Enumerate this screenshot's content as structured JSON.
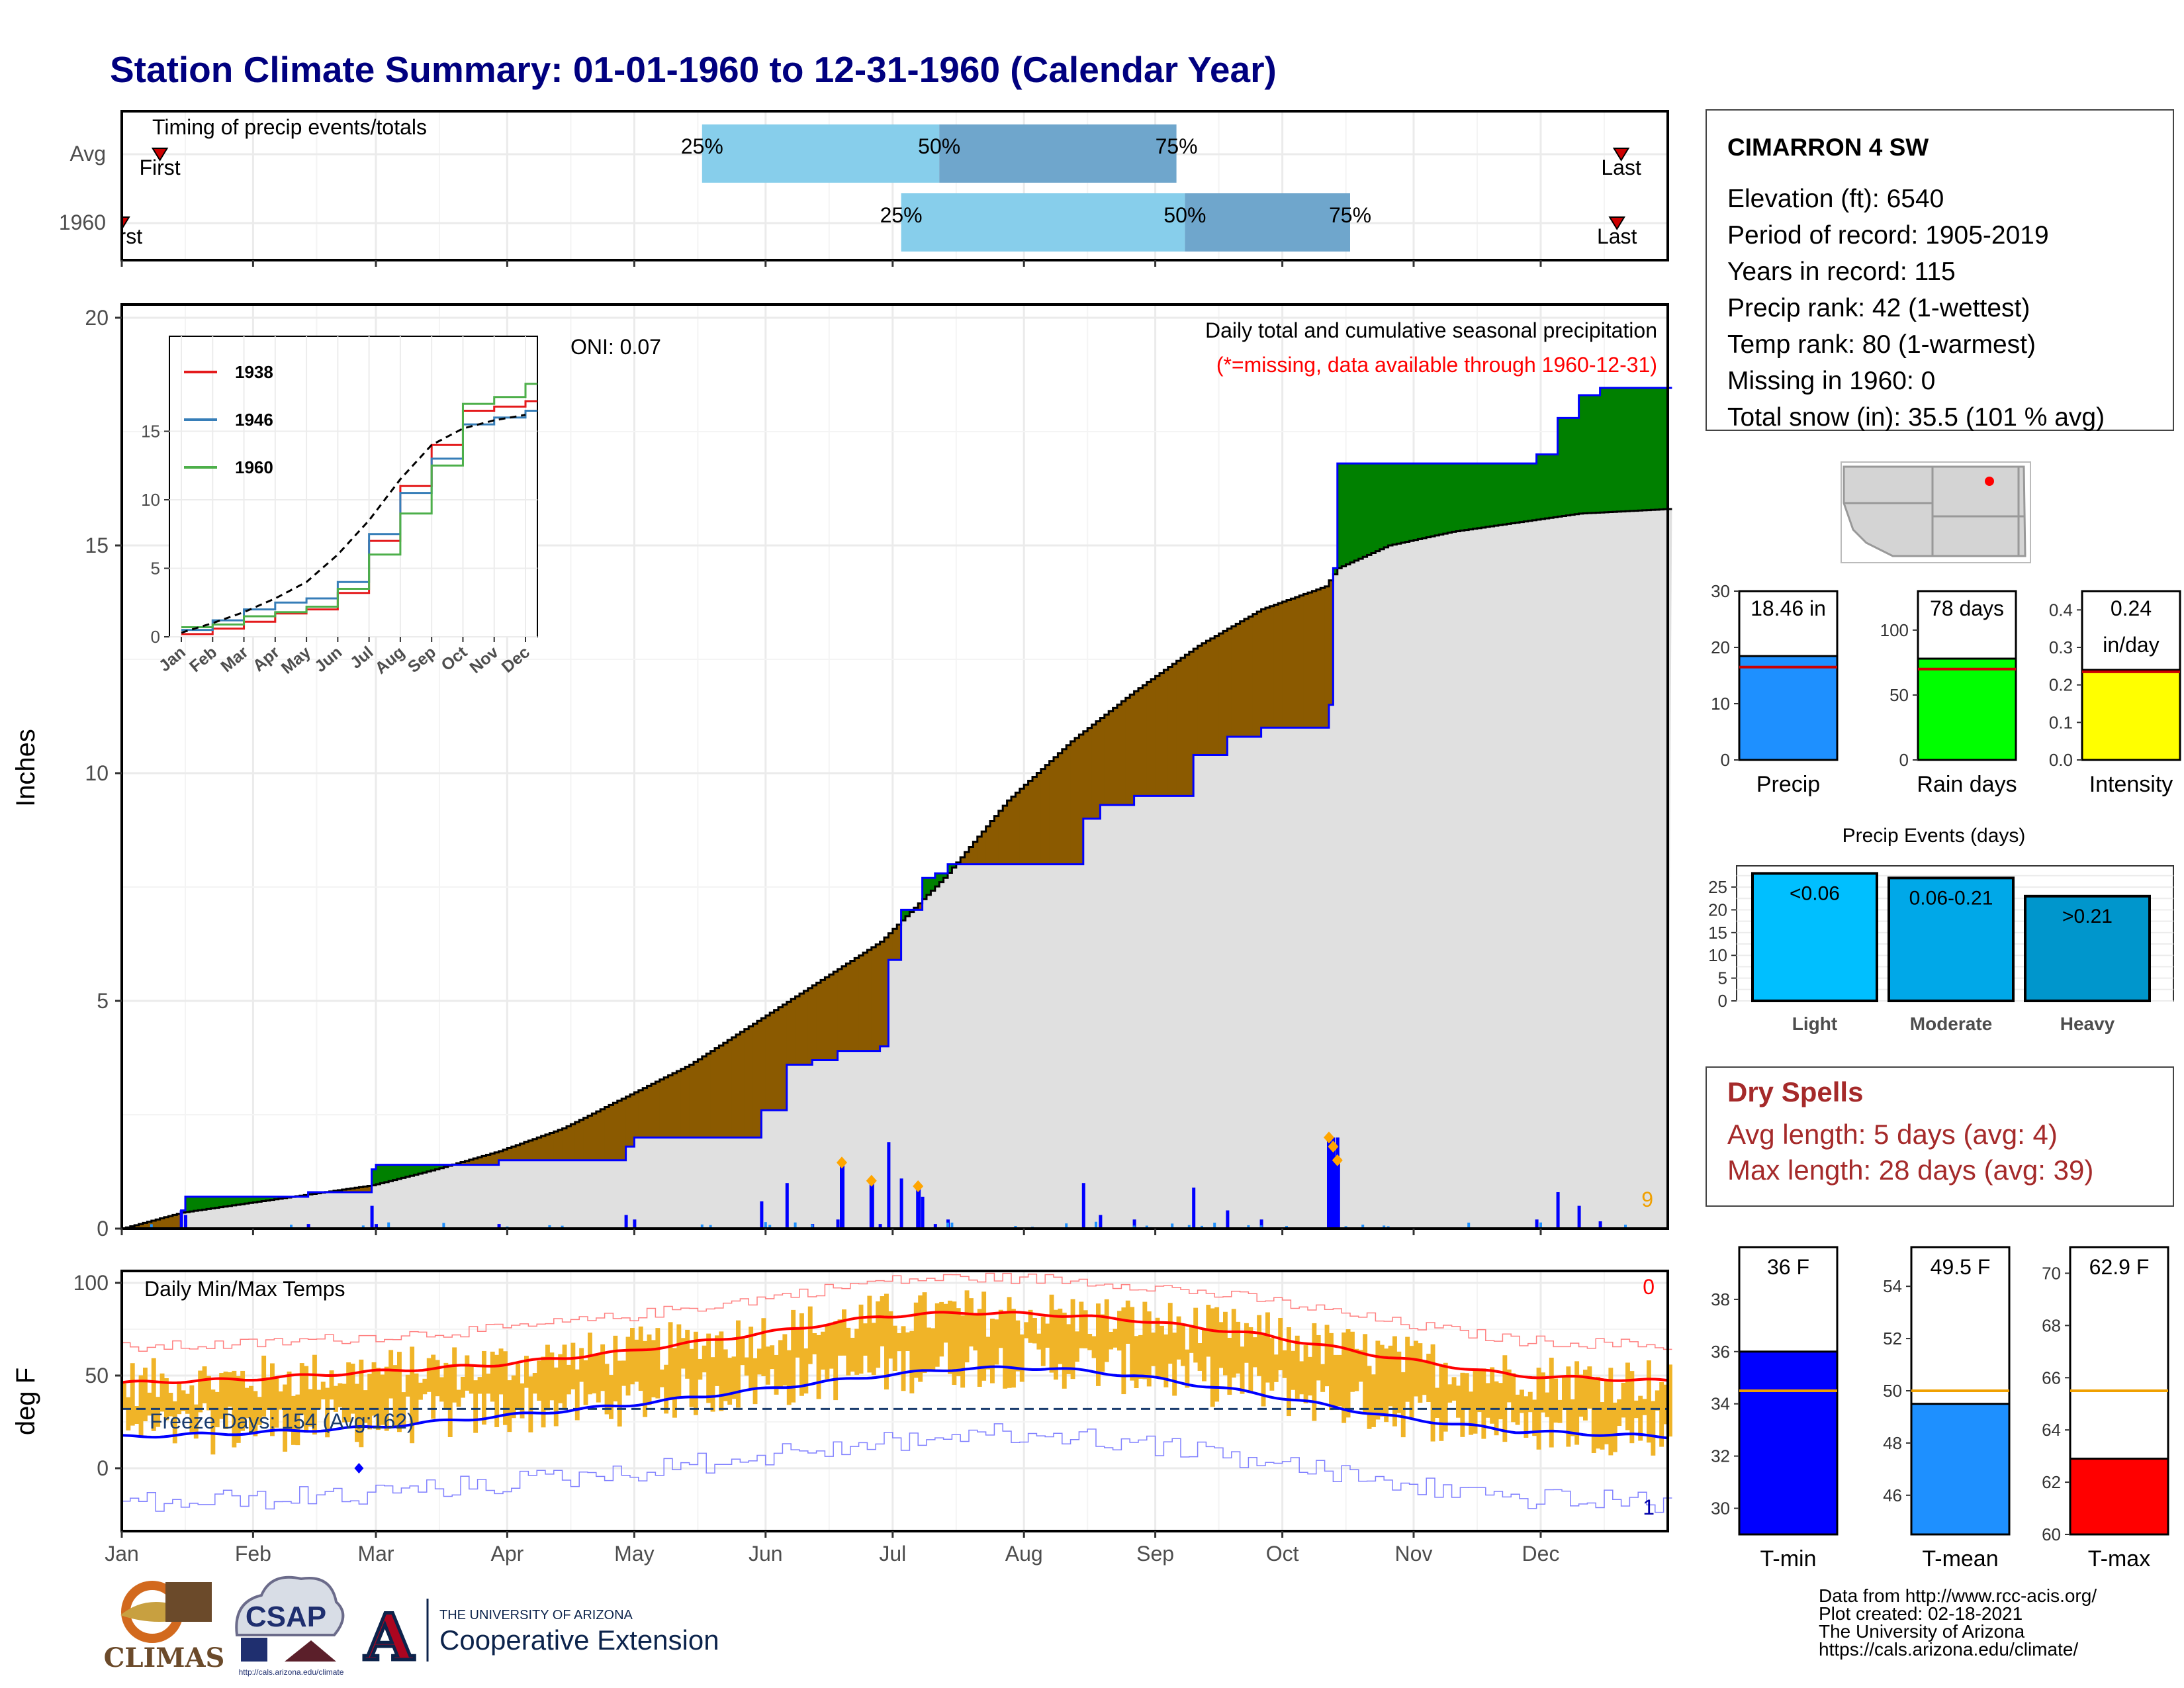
{
  "title": "Station Climate Summary: 01-01-1960 to 12-31-1960 (Calendar Year)",
  "colors": {
    "title": "#00007f",
    "q_light": "#87ceeb",
    "q_dark": "#6fa6cc",
    "cum_avg_fill": "#e0e0e0",
    "above_avg": "#008000",
    "below_avg": "#8b5a00",
    "cum_line": "#0000ff",
    "temp_bar": "#f0b428",
    "tmax": "#ff0000",
    "tmin": "#0000ff",
    "precip_bar": "#1e90ff",
    "rain_bar": "#00ff00",
    "intensity_bar": "#ffff00",
    "light": "#00bfff",
    "moderate": "#00a8e8",
    "heavy": "#0096cc",
    "dry": "#a52a2a"
  },
  "months": [
    "Jan",
    "Feb",
    "Mar",
    "Apr",
    "May",
    "Jun",
    "Jul",
    "Aug",
    "Sep",
    "Oct",
    "Nov",
    "Dec"
  ],
  "timing": {
    "label": "Timing of precip events/totals",
    "rows": [
      {
        "name": "Avg",
        "first_label": "First",
        "last_label": "Last",
        "q25": "25%",
        "q50": "50%",
        "q75": "75%",
        "q25_day": 138,
        "q50_day": 194,
        "q75_day": 250,
        "first_day": 10,
        "last_day": 355
      },
      {
        "name": "1960",
        "first_label": "First",
        "last_label": "Last",
        "q25": "25%",
        "q50": "50%",
        "q75": "75%",
        "q25_day": 185,
        "q50_day": 252,
        "q75_day": 291,
        "first_day": 1,
        "last_day": 354
      }
    ]
  },
  "main_panel": {
    "title": "Daily total and cumulative seasonal precipitation",
    "subtitle": "(*=missing, data available through 1960-12-31)",
    "oni": "ONI: 0.07",
    "ylabel": "Inches",
    "yticks": [
      "0",
      "5",
      "10",
      "15",
      "20"
    ],
    "missing_count": "9"
  },
  "inset": {
    "yticks": [
      "0",
      "5",
      "10",
      "15"
    ],
    "legend": [
      {
        "name": "1938",
        "color": "#e41a1c"
      },
      {
        "name": "1946",
        "color": "#377eb8"
      },
      {
        "name": "1960",
        "color": "#4daf4a"
      }
    ]
  },
  "temp_panel": {
    "label": "Daily Min/Max Temps",
    "ylabel": "deg F",
    "yticks": [
      "0",
      "50",
      "100"
    ],
    "freeze": "Freeze Days: 154 (Avg:162)",
    "max_missing": "0",
    "min_missing": "1"
  },
  "station": {
    "name": "CIMARRON 4 SW",
    "lines": [
      "Elevation (ft): 6540",
      "Period of record: 1905-2019",
      "Years in record: 115",
      "Precip rank: 42 (1-wettest)",
      "Temp rank: 80 (1-warmest)",
      "Missing in 1960: 0",
      "Total snow (in): 35.5 (101 % avg)"
    ]
  },
  "small_bars": [
    {
      "label": "Precip",
      "value_text": "18.46 in",
      "value": 18.46,
      "avg": 16.5,
      "ymax": 30,
      "yticks": [
        "0",
        "10",
        "20",
        "30"
      ],
      "color": "#1e90ff"
    },
    {
      "label": "Rain days",
      "value_text": "78 days",
      "value": 78,
      "avg": 70,
      "ymax": 130,
      "yticks": [
        "0",
        "50",
        "100"
      ],
      "color": "#00ff00"
    },
    {
      "label": "Intensity",
      "value_text": "0.24",
      "value_text2": "in/day",
      "value": 0.24,
      "avg": 0.235,
      "ymax": 0.45,
      "yticks": [
        "0.0",
        "0.1",
        "0.2",
        "0.3",
        "0.4"
      ],
      "color": "#ffff00"
    }
  ],
  "events": {
    "title": "Precip Events (days)",
    "yticks": [
      "0",
      "5",
      "10",
      "15",
      "20",
      "25"
    ],
    "bars": [
      {
        "category": "Light",
        "label": "<0.06",
        "value": 28
      },
      {
        "category": "Moderate",
        "label": "0.06-0.21",
        "value": 27
      },
      {
        "category": "Heavy",
        "label": ">0.21",
        "value": 23
      }
    ]
  },
  "dry": {
    "title": "Dry Spells",
    "avg": "Avg length: 5 days (avg: 4)",
    "max": "Max length: 28 days (avg: 39)"
  },
  "temp_bars": [
    {
      "label": "T-min",
      "value_text": "36 F",
      "value": 36,
      "avg": 34.5,
      "ymin": 29,
      "ymax": 40,
      "yticks": [
        "30",
        "32",
        "34",
        "36",
        "38"
      ],
      "color": "#0000ff"
    },
    {
      "label": "T-mean",
      "value_text": "49.5 F",
      "value": 49.5,
      "avg": 50,
      "ymin": 44.5,
      "ymax": 55.5,
      "yticks": [
        "46",
        "48",
        "50",
        "52",
        "54"
      ],
      "color": "#1e90ff"
    },
    {
      "label": "T-max",
      "value_text": "62.9 F",
      "value": 62.9,
      "avg": 65.5,
      "ymin": 60,
      "ymax": 71,
      "yticks": [
        "60",
        "62",
        "64",
        "66",
        "68",
        "70"
      ],
      "color": "#ff0000"
    }
  ],
  "footer": {
    "lines": [
      "Data from http://www.rcc-acis.org/",
      "Plot created: 02-18-2021",
      "The University of Arizona",
      "https://cals.arizona.edu/climate/"
    ]
  },
  "logos": {
    "climas": "CLIMAS",
    "csap": "CSAP",
    "csap_url": "http://cals.arizona.edu/climate",
    "ua_small": "THE UNIVERSITY OF ARIZONA",
    "ua_big": "Cooperative Extension",
    "ua_letter": "A"
  },
  "chart_data": [
    {
      "type": "area",
      "title": "Daily total and cumulative seasonal precipitation",
      "ylabel": "Inches",
      "ylim": [
        0,
        20
      ],
      "x_units": "day of year 1960",
      "series": [
        {
          "name": "",
          "x": [
            1,
            15,
            30,
            45,
            60,
            75,
            90,
            105,
            120,
            135,
            150,
            165,
            180,
            195,
            210,
            225,
            240,
            255,
            270,
            285,
            288,
            300,
            315,
            330,
            345,
            366
          ],
          "values": [
            0.0,
            0.35,
            0.55,
            0.75,
            0.95,
            1.3,
            1.7,
            2.2,
            2.9,
            3.6,
            4.5,
            5.4,
            6.3,
            7.7,
            9.4,
            10.7,
            11.8,
            12.8,
            13.6,
            14.1,
            14.5,
            15.0,
            15.3,
            15.5,
            15.7,
            15.8
          ]
        },
        {
          "name": "",
          "x": [
            1,
            15,
            16,
            45,
            60,
            61,
            90,
            120,
            122,
            150,
            152,
            158,
            164,
            170,
            180,
            182,
            185,
            190,
            193,
            196,
            200,
            225,
            228,
            232,
            240,
            254,
            262,
            270,
            286,
            287,
            288,
            300,
            335,
            340,
            345,
            350,
            366
          ],
          "values": [
            0.0,
            0.4,
            0.7,
            0.8,
            1.3,
            1.4,
            1.5,
            1.8,
            2.0,
            2.0,
            2.6,
            3.6,
            3.7,
            3.9,
            4.0,
            5.9,
            7.0,
            7.7,
            7.8,
            8.0,
            8.0,
            8.0,
            9.0,
            9.3,
            9.5,
            10.4,
            10.8,
            11.0,
            11.5,
            14.5,
            16.8,
            16.8,
            17.0,
            17.8,
            18.3,
            18.46,
            18.46
          ]
        }
      ],
      "daily_events": {
        "x": [
          171,
          178,
          189,
          286,
          287,
          288
        ],
        "values": [
          1.45,
          1.05,
          0.93,
          2.0,
          1.8,
          1.5
        ]
      }
    },
    {
      "type": "line",
      "title": "Daily Min/Max Temps",
      "ylabel": "deg F",
      "ylim": [
        -33,
        103
      ],
      "series": [
        {
          "name": "",
          "x": [
            1,
            30,
            60,
            90,
            120,
            150,
            180,
            200,
            220,
            240,
            270,
            300,
            330,
            366
          ],
          "values": [
            46,
            48,
            52,
            56,
            63,
            72,
            82,
            84,
            83,
            80,
            72,
            60,
            50,
            47
          ]
        },
        {
          "name": "",
          "x": [
            1,
            30,
            60,
            90,
            120,
            150,
            180,
            200,
            220,
            240,
            270,
            300,
            330,
            366
          ],
          "values": [
            17,
            19,
            22,
            28,
            34,
            42,
            50,
            54,
            54,
            50,
            40,
            28,
            20,
            17
          ]
        }
      ]
    },
    {
      "type": "line",
      "title": "",
      "x": [
        "Jan",
        "Feb",
        "Mar",
        "Apr",
        "May",
        "Jun",
        "Jul",
        "Aug",
        "Sep",
        "Oct",
        "Nov",
        "Dec"
      ],
      "series": [
        {
          "name": "1938",
          "values": [
            0.2,
            0.6,
            1.1,
            1.7,
            2.0,
            3.2,
            7.0,
            11.0,
            14.0,
            16.5,
            16.8,
            17.2
          ]
        },
        {
          "name": "1946",
          "values": [
            0.5,
            1.2,
            2.0,
            2.5,
            2.8,
            4.0,
            7.5,
            10.5,
            13.0,
            15.5,
            16.0,
            16.5
          ]
        },
        {
          "name": "1960",
          "values": [
            0.7,
            0.9,
            1.5,
            1.8,
            2.2,
            3.5,
            6.0,
            9.0,
            12.5,
            17.0,
            17.5,
            18.46
          ]
        },
        {
          "name": "",
          "values": [
            0.3,
            1.0,
            1.8,
            2.8,
            4.0,
            6.0,
            8.5,
            11.5,
            14.0,
            15.2,
            15.8,
            16.2
          ]
        }
      ]
    },
    {
      "type": "bar",
      "title": "Precip Events (days)",
      "categories": [
        "Light",
        "Moderate",
        "Heavy"
      ],
      "values": [
        28,
        27,
        23
      ]
    },
    {
      "type": "bar",
      "title": "",
      "categories": [
        "Precip",
        "Rain days",
        "Intensity"
      ],
      "series": [
        {
          "name": "",
          "values": [
            18.46,
            78,
            0.24
          ]
        },
        {
          "name": "",
          "values": [
            16.5,
            70,
            0.235
          ]
        }
      ]
    },
    {
      "type": "bar",
      "title": "",
      "categories": [
        "T-min",
        "T-mean",
        "T-max"
      ],
      "series": [
        {
          "name": "",
          "values": [
            36,
            49.5,
            62.9
          ]
        },
        {
          "name": "",
          "values": [
            34.5,
            50,
            65.5
          ]
        }
      ]
    }
  ]
}
